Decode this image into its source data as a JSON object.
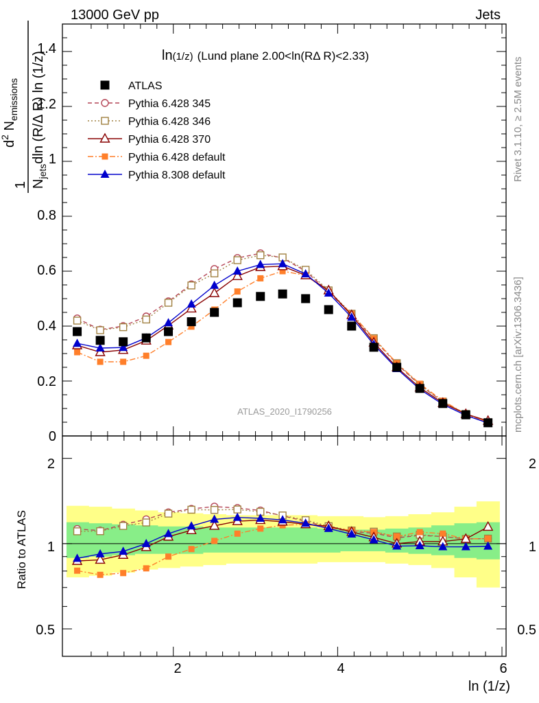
{
  "header": {
    "left": "13000 GeV pp",
    "right": "Jets"
  },
  "side_labels": {
    "rivet": "Rivet 3.1.10, ≥ 2.5M events",
    "mcplots": "mcplots.cern.ch [arXiv:1306.3436]"
  },
  "plot_annotation": {
    "main": "ln",
    "sub": "(1/z)",
    "rest": "(Lund plane 2.00<ln(RΔ R)<2.33)"
  },
  "watermark": "ATLAS_2020_I1790256",
  "axes": {
    "xlabel": "ln (1/z)",
    "ylabel_main": "1/N_jets dN_emissions/dln(R/ΔR)dln(1/z)",
    "ylabel_ratio": "Ratio to ATLAS",
    "xlim": [
      0.65,
      6.05
    ],
    "ylim_main": [
      0,
      1.5
    ],
    "ylim_ratio": [
      0.4,
      2.4
    ],
    "ratio_scale": "log",
    "x_ticks": [
      "2",
      "4",
      "6"
    ],
    "y_ticks_main": [
      "0",
      "0.2",
      "0.4",
      "0.6",
      "0.8",
      "1",
      "1.2",
      "1.4"
    ],
    "y_ticks_ratio": [
      "0.5",
      "1",
      "2"
    ]
  },
  "legend": {
    "placement": "top-left",
    "entries": [
      "ATLAS",
      "Pythia 6.428 345",
      "Pythia 6.428 346",
      "Pythia 6.428 370",
      "Pythia 6.428 default",
      "Pythia 8.308 default"
    ]
  },
  "chart_data": {
    "type": "line",
    "x": [
      0.83,
      1.11,
      1.39,
      1.67,
      1.94,
      2.22,
      2.5,
      2.78,
      3.06,
      3.33,
      3.61,
      3.89,
      4.17,
      4.44,
      4.72,
      5.0,
      5.28,
      5.56,
      5.83
    ],
    "series": [
      {
        "name": "ATLAS",
        "color": "#000000",
        "marker": "square-filled",
        "line": "none",
        "values": [
          0.38,
          0.348,
          0.343,
          0.357,
          0.38,
          0.416,
          0.45,
          0.485,
          0.508,
          0.517,
          0.5,
          0.46,
          0.4,
          0.323,
          0.25,
          0.173,
          0.118,
          0.077,
          0.048
        ]
      },
      {
        "name": "Pythia 6.428 345",
        "color": "#b44455",
        "marker": "circle-open",
        "line": "dashed",
        "values": [
          0.428,
          0.387,
          0.4,
          0.435,
          0.49,
          0.552,
          0.608,
          0.648,
          0.665,
          0.648,
          0.6,
          0.525,
          0.44,
          0.352,
          0.262,
          0.185,
          0.125,
          0.08,
          0.05
        ]
      },
      {
        "name": "Pythia 6.428 346",
        "color": "#a08040",
        "marker": "square-open",
        "line": "dotted",
        "values": [
          0.42,
          0.385,
          0.396,
          0.424,
          0.485,
          0.548,
          0.592,
          0.64,
          0.658,
          0.65,
          0.605,
          0.53,
          0.445,
          0.356,
          0.265,
          0.186,
          0.125,
          0.08,
          0.05
        ]
      },
      {
        "name": "Pythia 6.428 370",
        "color": "#880000",
        "marker": "triangle-open",
        "line": "solid",
        "values": [
          0.33,
          0.305,
          0.313,
          0.347,
          0.402,
          0.464,
          0.52,
          0.582,
          0.615,
          0.618,
          0.585,
          0.53,
          0.44,
          0.34,
          0.25,
          0.176,
          0.12,
          0.08,
          0.055
        ]
      },
      {
        "name": "Pythia 6.428 default",
        "color": "#ff7f2a",
        "marker": "square-filled-small",
        "line": "dashdot",
        "values": [
          0.305,
          0.27,
          0.27,
          0.292,
          0.342,
          0.398,
          0.46,
          0.526,
          0.574,
          0.6,
          0.585,
          0.525,
          0.445,
          0.355,
          0.265,
          0.19,
          0.128,
          0.08,
          0.05
        ]
      },
      {
        "name": "Pythia 8.308 default",
        "color": "#0000cc",
        "marker": "triangle-filled",
        "line": "solid",
        "values": [
          0.337,
          0.32,
          0.322,
          0.357,
          0.412,
          0.48,
          0.548,
          0.6,
          0.624,
          0.627,
          0.59,
          0.52,
          0.432,
          0.333,
          0.245,
          0.17,
          0.115,
          0.075,
          0.047
        ]
      }
    ],
    "ratio": {
      "band_x_edges": [
        0.7,
        0.97,
        1.25,
        1.53,
        1.81,
        2.08,
        2.36,
        2.64,
        2.92,
        3.19,
        3.47,
        3.75,
        4.03,
        4.31,
        4.58,
        4.86,
        5.14,
        5.42,
        5.69,
        5.97
      ],
      "stat_band": [
        [
          0.89,
          1.19
        ],
        [
          0.9,
          1.18
        ],
        [
          0.91,
          1.17
        ],
        [
          0.92,
          1.16
        ],
        [
          0.92,
          1.15
        ],
        [
          0.92,
          1.15
        ],
        [
          0.93,
          1.14
        ],
        [
          0.93,
          1.14
        ],
        [
          0.93,
          1.14
        ],
        [
          0.93,
          1.14
        ],
        [
          0.93,
          1.14
        ],
        [
          0.93,
          1.13
        ],
        [
          0.94,
          1.12
        ],
        [
          0.94,
          1.12
        ],
        [
          0.93,
          1.13
        ],
        [
          0.92,
          1.14
        ],
        [
          0.91,
          1.16
        ],
        [
          0.89,
          1.18
        ],
        [
          0.88,
          1.19
        ]
      ],
      "total_band": [
        [
          0.76,
          1.36
        ],
        [
          0.77,
          1.35
        ],
        [
          0.79,
          1.33
        ],
        [
          0.81,
          1.31
        ],
        [
          0.82,
          1.29
        ],
        [
          0.83,
          1.28
        ],
        [
          0.84,
          1.27
        ],
        [
          0.85,
          1.26
        ],
        [
          0.85,
          1.26
        ],
        [
          0.85,
          1.26
        ],
        [
          0.85,
          1.26
        ],
        [
          0.86,
          1.25
        ],
        [
          0.86,
          1.25
        ],
        [
          0.86,
          1.24
        ],
        [
          0.85,
          1.25
        ],
        [
          0.84,
          1.27
        ],
        [
          0.82,
          1.29
        ],
        [
          0.76,
          1.35
        ],
        [
          0.7,
          1.41
        ]
      ]
    }
  }
}
